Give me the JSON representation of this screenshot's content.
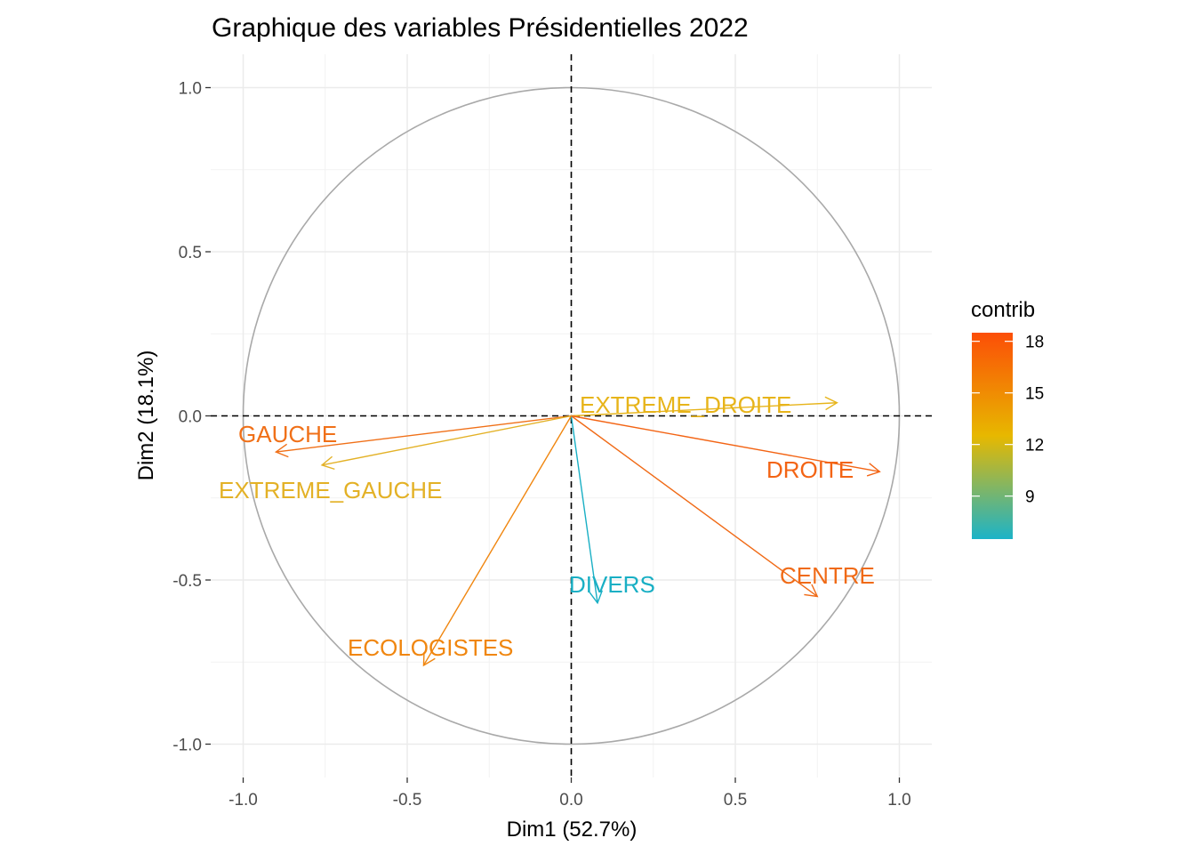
{
  "chart_data": {
    "type": "scatter",
    "title": "Graphique des variables  Présidentielles 2022",
    "xlabel": "Dim1 (52.7%)",
    "ylabel": "Dim2 (18.1%)",
    "xlim": [
      -1.1,
      1.1
    ],
    "ylim": [
      -1.1,
      1.1
    ],
    "x_ticks": [
      {
        "value": -1.0,
        "label": "-1.0"
      },
      {
        "value": -0.5,
        "label": "-0.5"
      },
      {
        "value": 0.0,
        "label": "0.0"
      },
      {
        "value": 0.5,
        "label": "0.5"
      },
      {
        "value": 1.0,
        "label": "1.0"
      }
    ],
    "y_ticks": [
      {
        "value": 1.0,
        "label": "1.0"
      },
      {
        "value": 0.5,
        "label": "0.5"
      },
      {
        "value": 0.0,
        "label": "0.0"
      },
      {
        "value": -0.5,
        "label": "-0.5"
      },
      {
        "value": -1.0,
        "label": "-1.0"
      }
    ],
    "grid": true,
    "unit_circle": true,
    "legend": {
      "title": "contrib",
      "placement": "right",
      "range": [
        6.5,
        18.5
      ],
      "ticks": [
        {
          "value": 18,
          "label": "18"
        },
        {
          "value": 15,
          "label": "15"
        },
        {
          "value": 12,
          "label": "12"
        },
        {
          "value": 9,
          "label": "9"
        }
      ],
      "gradient": [
        {
          "value": 6.5,
          "color": "#1cb3c8"
        },
        {
          "value": 12.5,
          "color": "#e7b800"
        },
        {
          "value": 18.5,
          "color": "#fc4e07"
        }
      ]
    },
    "variables": [
      {
        "name": "EXTREME_DROITE",
        "x": 0.81,
        "y": 0.04,
        "contrib": 12.5,
        "color": "#e7b41a"
      },
      {
        "name": "GAUCHE",
        "x": -0.9,
        "y": -0.11,
        "contrib": 16.8,
        "color": "#f07018"
      },
      {
        "name": "EXTREME_GAUCHE",
        "x": -0.76,
        "y": -0.15,
        "contrib": 12.8,
        "color": "#e3b126"
      },
      {
        "name": "DROITE",
        "x": 0.94,
        "y": -0.17,
        "contrib": 17.5,
        "color": "#f36414"
      },
      {
        "name": "CENTRE",
        "x": 0.75,
        "y": -0.55,
        "contrib": 17.2,
        "color": "#f06a16"
      },
      {
        "name": "DIVERS",
        "x": 0.08,
        "y": -0.57,
        "contrib": 7.0,
        "color": "#19afc4"
      },
      {
        "name": "ECOLOGISTES",
        "x": -0.45,
        "y": -0.76,
        "contrib": 15.6,
        "color": "#f0860f"
      }
    ]
  }
}
